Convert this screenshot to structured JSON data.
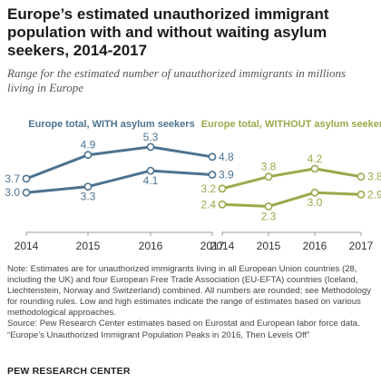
{
  "title": "Europe’s estimated unauthorized immigrant population with and without waiting asylum seekers, 2014-2017",
  "subtitle": "Range for the estimated number of unauthorized immigrants in millions living in Europe",
  "notes": {
    "note": "Note: Estimates are for unauthorized immigrants living in all European Union countries (28, including the UK) and four European Free Trade Association (EU-EFTA) countries (Iceland, Liechtenstein, Norway and Switzerland) combined. All numbers are rounded; see Methodology for rounding rules. Low and high estimates indicate the range of estimates based on various methodological approaches.",
    "source": "Source: Pew Research Center estimates based on Eurostat and European labor force data.",
    "report": "“Europe’s Unauthorized Immigrant Population Peaks in 2016, Then Levels Off”"
  },
  "brand": "PEW RESEARCH CENTER",
  "colors": {
    "with_asylum": "#4c7390",
    "without_asylum": "#9aa94a",
    "axis": "#555555",
    "text": "#231f20"
  },
  "chart_data": [
    {
      "type": "line",
      "title": "Europe total, WITH asylum seekers",
      "x": [
        "2014",
        "2015",
        "2016",
        "2017"
      ],
      "series": [
        {
          "values": [
            3.7,
            4.9,
            5.3,
            4.8
          ]
        },
        {
          "values": [
            3.0,
            3.3,
            4.1,
            3.9
          ]
        }
      ],
      "data_labels": {
        "high": [
          "3.7",
          "4.9",
          "5.3",
          "4.8"
        ],
        "low": [
          "3.0",
          "3.3",
          "4.1",
          "3.9"
        ]
      },
      "ylim": [
        2,
        5.8
      ],
      "grid": false
    },
    {
      "type": "line",
      "title": "Europe total, WITHOUT asylum seekers",
      "x": [
        "2014",
        "2015",
        "2016",
        "2017"
      ],
      "series": [
        {
          "values": [
            3.2,
            3.8,
            4.2,
            3.8
          ]
        },
        {
          "values": [
            2.4,
            2.3,
            3.0,
            2.9
          ]
        }
      ],
      "data_labels": {
        "high": [
          "3.2",
          "3.8",
          "4.2",
          "3.8"
        ],
        "low": [
          "2.4",
          "2.3",
          "3.0",
          "2.9"
        ]
      },
      "ylim": [
        2,
        5.8
      ],
      "grid": false
    }
  ]
}
